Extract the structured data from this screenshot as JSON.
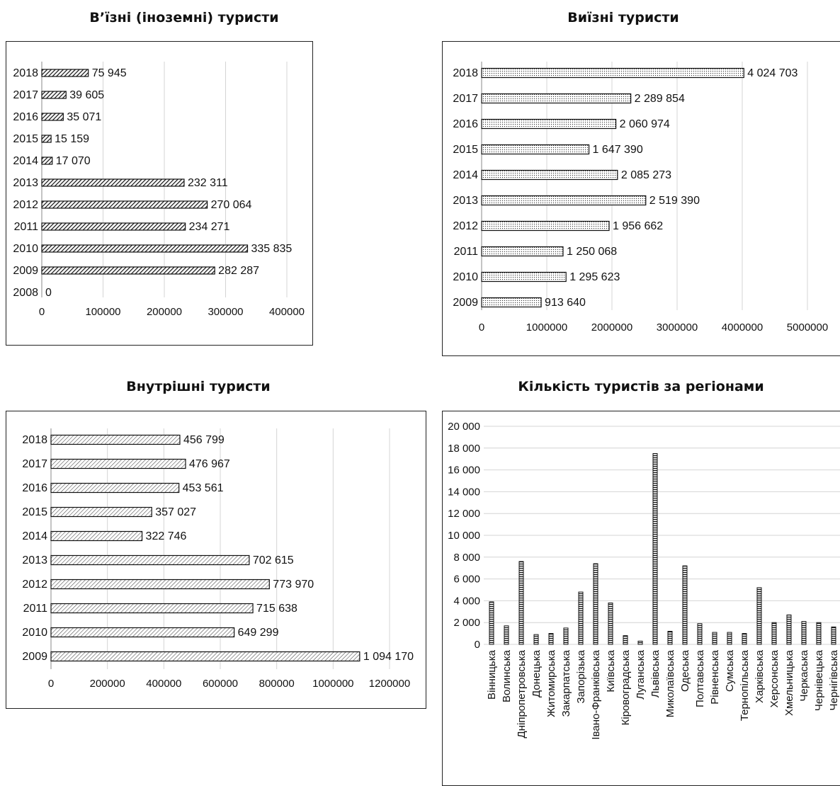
{
  "chart_data": [
    {
      "type": "bar",
      "orientation": "horizontal",
      "title": "В’їзні (іноземні) туристи",
      "categories": [
        "2018",
        "2017",
        "2016",
        "2015",
        "2014",
        "2013",
        "2012",
        "2011",
        "2010",
        "2009",
        "2008"
      ],
      "values": [
        75945,
        39605,
        35071,
        15159,
        17070,
        232311,
        270064,
        234271,
        335835,
        282287,
        0
      ],
      "data_labels": [
        "75 945",
        "39 605",
        "35 071",
        "15 159",
        "17 070",
        "232 311",
        "270 064",
        "234 271",
        "335 835",
        "282 287",
        "0"
      ],
      "xlim": [
        0,
        400000
      ],
      "xticks": [
        "0",
        "100000",
        "200000",
        "300000",
        "400000"
      ],
      "pattern": "diagonal-dense",
      "grid": true
    },
    {
      "type": "bar",
      "orientation": "horizontal",
      "title": "Виїзні туристи",
      "categories": [
        "2018",
        "2017",
        "2016",
        "2015",
        "2014",
        "2013",
        "2012",
        "2011",
        "2010",
        "2009"
      ],
      "values": [
        4024703,
        2289854,
        2060974,
        1647390,
        2085273,
        2519390,
        1956662,
        1250068,
        1295623,
        913640
      ],
      "data_labels": [
        "4 024 703",
        "2 289 854",
        "2 060 974",
        "1 647 390",
        "2 085 273",
        "2 519 390",
        "1 956 662",
        "1 250 068",
        "1 295 623",
        "913 640"
      ],
      "xlim": [
        0,
        5000000
      ],
      "xticks": [
        "0",
        "1000000",
        "2000000",
        "3000000",
        "4000000",
        "5000000"
      ],
      "pattern": "dots",
      "grid": true
    },
    {
      "type": "bar",
      "orientation": "horizontal",
      "title": "Внутрішні туристи",
      "categories": [
        "2018",
        "2017",
        "2016",
        "2015",
        "2014",
        "2013",
        "2012",
        "2011",
        "2010",
        "2009"
      ],
      "values": [
        456799,
        476967,
        453561,
        357027,
        322746,
        702615,
        773970,
        715638,
        649299,
        1094170
      ],
      "data_labels": [
        "456 799",
        "476 967",
        "453 561",
        "357 027",
        "322 746",
        "702 615",
        "773 970",
        "715 638",
        "649 299",
        "1 094 170"
      ],
      "xlim": [
        0,
        1200000
      ],
      "xticks": [
        "0",
        "200000",
        "400000",
        "600000",
        "800000",
        "1000000",
        "1200000"
      ],
      "pattern": "diagonal-light",
      "grid": true
    },
    {
      "type": "bar",
      "orientation": "vertical",
      "title": "Кількість туристів за регіонами",
      "categories": [
        "Вінницька",
        "Волинська",
        "Дніпропетровська",
        "Донецька",
        "Житомирська",
        "Закарпатська",
        "Запорізька",
        "Івано-Франківська",
        "Київська",
        "Кіровоградська",
        "Луганська",
        "Львівська",
        "Миколаївська",
        "Одеська",
        "Полтавська",
        "Рівненська",
        "Сумська",
        "Тернопільська",
        "Харківська",
        "Херсонська",
        "Хмельницька",
        "Черкаська",
        "Чернівецька",
        "Чернігівська"
      ],
      "values": [
        3900,
        1700,
        7600,
        900,
        1000,
        1500,
        4800,
        7400,
        3800,
        800,
        300,
        17500,
        1200,
        7200,
        1900,
        1100,
        1100,
        1000,
        5200,
        2000,
        2700,
        2100,
        2000,
        1600
      ],
      "ylim": [
        0,
        20000
      ],
      "yticks": [
        "0",
        "2 000",
        "4 000",
        "6 000",
        "8 000",
        "10 000",
        "12 000",
        "14 000",
        "16 000",
        "18 000",
        "20 000"
      ],
      "pattern": "horizontal-lines",
      "grid": true
    }
  ]
}
